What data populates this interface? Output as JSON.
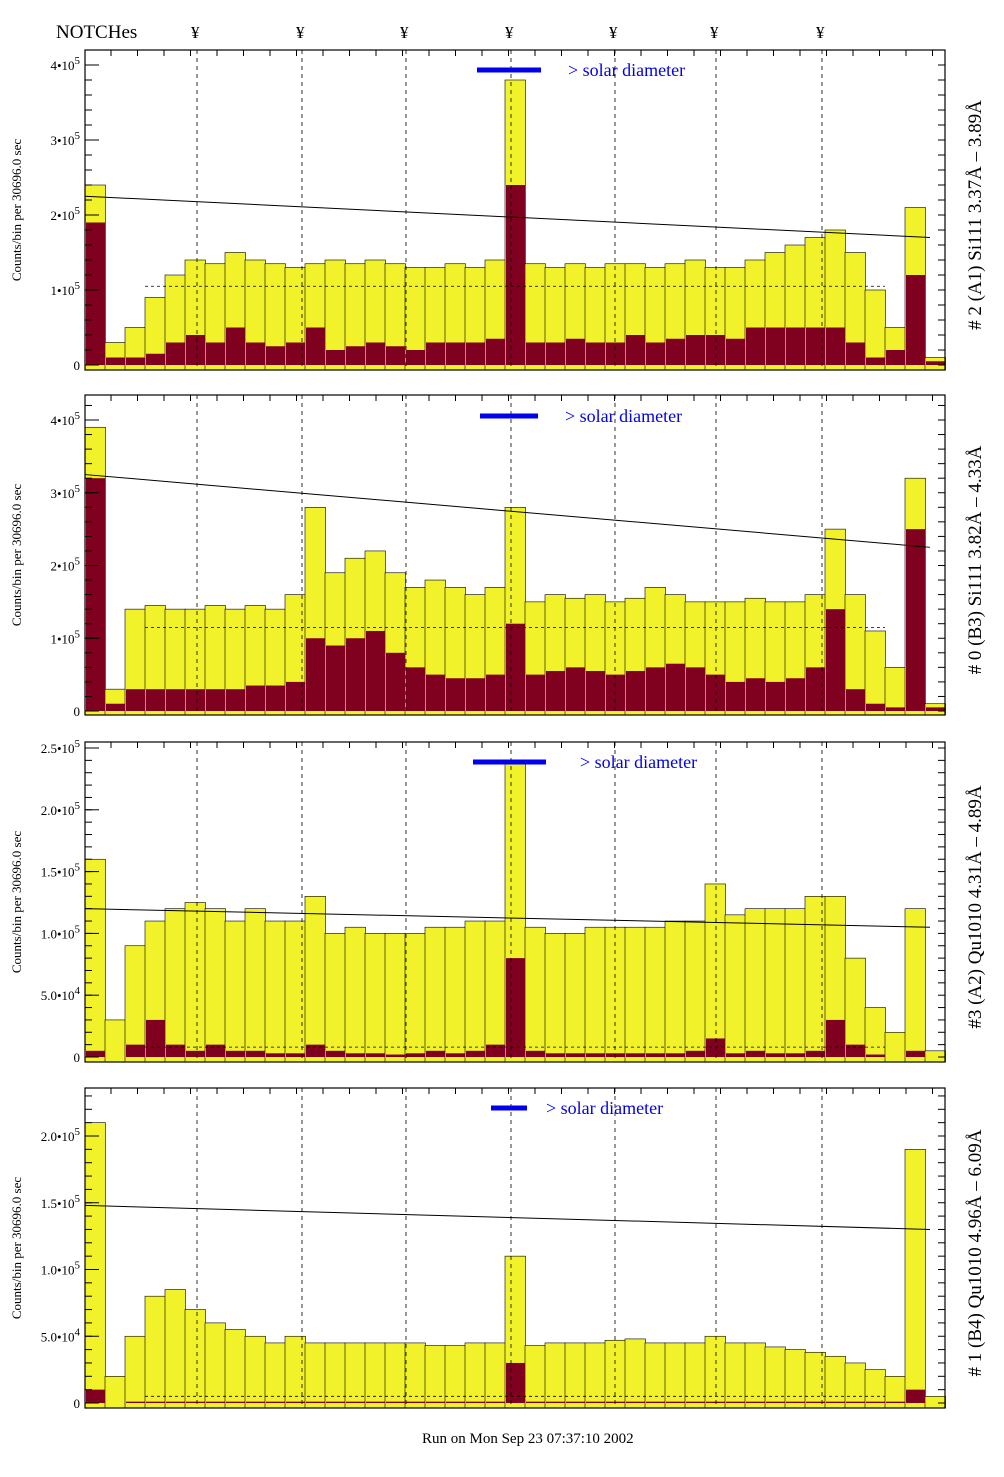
{
  "header": {
    "notches_label": "NOTCHes",
    "notch_symbol": "¥",
    "notch_count": 7
  },
  "footer": {
    "run_text": "Run on Mon Sep 23 07:37:10 2002"
  },
  "colors": {
    "fill": "#f2f22a",
    "dark": "#800020",
    "accent": "#0000ee"
  },
  "chart_data": [
    {
      "type": "bar",
      "title": "# 2 (A1) Si111  3.37Å – 3.89Å",
      "ylabel": "Counts/bin per  30696.0 sec",
      "legend": "> solar diameter",
      "unit": 100000,
      "ylim": [
        0,
        4.2
      ],
      "yticks": [
        {
          "v": 0,
          "m": "0",
          "e": ""
        },
        {
          "v": 1,
          "m": "1•10",
          "e": "5"
        },
        {
          "v": 2,
          "m": "2•10",
          "e": "5"
        },
        {
          "v": 3,
          "m": "3•10",
          "e": "5"
        },
        {
          "v": 4,
          "m": "4•10",
          "e": "5"
        }
      ],
      "total": [
        2.4,
        0.3,
        0.5,
        0.9,
        1.2,
        1.4,
        1.35,
        1.5,
        1.4,
        1.35,
        1.3,
        1.35,
        1.4,
        1.35,
        1.4,
        1.35,
        1.3,
        1.3,
        1.35,
        1.3,
        1.4,
        3.8,
        1.35,
        1.3,
        1.35,
        1.3,
        1.35,
        1.35,
        1.3,
        1.35,
        1.4,
        1.3,
        1.3,
        1.4,
        1.5,
        1.6,
        1.7,
        1.8,
        1.5,
        1.0,
        0.5,
        2.1,
        0.1
      ],
      "core": [
        1.9,
        0.1,
        0.1,
        0.15,
        0.3,
        0.4,
        0.3,
        0.5,
        0.3,
        0.25,
        0.3,
        0.5,
        0.2,
        0.25,
        0.3,
        0.25,
        0.2,
        0.3,
        0.3,
        0.3,
        0.35,
        2.4,
        0.3,
        0.3,
        0.35,
        0.3,
        0.3,
        0.4,
        0.3,
        0.35,
        0.4,
        0.4,
        0.35,
        0.5,
        0.5,
        0.5,
        0.5,
        0.5,
        0.3,
        0.1,
        0.2,
        1.2,
        0.05
      ],
      "fit_line": [
        2.25,
        1.7
      ],
      "dashed_level": 1.05
    },
    {
      "type": "bar",
      "title": "# 0 (B3) Si111  3.82Å – 4.33Å",
      "ylabel": "Counts/bin per  30696.0 sec",
      "legend": "> solar diameter",
      "unit": 100000,
      "ylim": [
        0,
        4.3
      ],
      "yticks": [
        {
          "v": 0,
          "m": "0",
          "e": ""
        },
        {
          "v": 1,
          "m": "1•10",
          "e": "5"
        },
        {
          "v": 2,
          "m": "2•10",
          "e": "5"
        },
        {
          "v": 3,
          "m": "3•10",
          "e": "5"
        },
        {
          "v": 4,
          "m": "4•10",
          "e": "5"
        }
      ],
      "total": [
        3.9,
        0.3,
        1.4,
        1.45,
        1.4,
        1.4,
        1.45,
        1.4,
        1.45,
        1.4,
        1.6,
        2.8,
        1.9,
        2.1,
        2.2,
        1.9,
        1.7,
        1.8,
        1.7,
        1.6,
        1.7,
        2.8,
        1.5,
        1.6,
        1.55,
        1.6,
        1.5,
        1.55,
        1.7,
        1.6,
        1.5,
        1.5,
        1.5,
        1.55,
        1.5,
        1.5,
        1.6,
        2.5,
        1.6,
        1.1,
        0.6,
        3.2,
        0.1
      ],
      "core": [
        3.2,
        0.1,
        0.3,
        0.3,
        0.3,
        0.3,
        0.3,
        0.3,
        0.35,
        0.35,
        0.4,
        1.0,
        0.9,
        1.0,
        1.1,
        0.8,
        0.6,
        0.5,
        0.45,
        0.45,
        0.5,
        1.2,
        0.5,
        0.55,
        0.6,
        0.55,
        0.5,
        0.55,
        0.6,
        0.65,
        0.6,
        0.5,
        0.4,
        0.45,
        0.4,
        0.45,
        0.6,
        1.4,
        0.3,
        0.1,
        0.05,
        2.5,
        0.05
      ],
      "fit_line": [
        3.25,
        2.25
      ],
      "dashed_level": 1.15
    },
    {
      "type": "bar",
      "title": "#3 (A2) Qu1010  4.31Å – 4.89Å",
      "ylabel": "Counts/bin per  30696.0 sec",
      "legend": "> solar diameter",
      "unit": 10000,
      "ylim": [
        0,
        25.5
      ],
      "yticks": [
        {
          "v": 0,
          "m": "0",
          "e": ""
        },
        {
          "v": 5,
          "m": "5.0•10",
          "e": "4"
        },
        {
          "v": 10,
          "m": "1.0•10",
          "e": "5"
        },
        {
          "v": 15,
          "m": "1.5•10",
          "e": "5"
        },
        {
          "v": 20,
          "m": "2.0•10",
          "e": "5"
        },
        {
          "v": 25,
          "m": "2.5•10",
          "e": "5"
        }
      ],
      "total": [
        16,
        3,
        9,
        11,
        12,
        12.5,
        12,
        11,
        12,
        11,
        11,
        13,
        10,
        10.5,
        10,
        10,
        10,
        10.5,
        10.5,
        11,
        11,
        24,
        10.5,
        10,
        10,
        10.5,
        10.5,
        10.5,
        10.5,
        11,
        11,
        14,
        11.5,
        12,
        12,
        12,
        13,
        13,
        8,
        4,
        2,
        12,
        0.5
      ],
      "core": [
        0.5,
        0,
        1,
        3,
        1,
        0.5,
        1,
        0.5,
        0.5,
        0.3,
        0.3,
        1,
        0.5,
        0.3,
        0.3,
        0.2,
        0.3,
        0.5,
        0.3,
        0.5,
        1,
        8,
        0.5,
        0.3,
        0.3,
        0.3,
        0.3,
        0.3,
        0.3,
        0.3,
        0.5,
        1.5,
        0.3,
        0.5,
        0.3,
        0.3,
        0.5,
        3,
        1,
        0.2,
        0,
        0.5,
        0
      ],
      "fit_line": [
        12,
        10.5
      ],
      "dashed_level": 0.8
    },
    {
      "type": "bar",
      "title": "# 1 (B4) Qu1010 4.96Å – 6.09Å",
      "ylabel": "Counts/bin per  30696.0 sec",
      "legend": "> solar diameter",
      "unit": 10000,
      "ylim": [
        0,
        23.5
      ],
      "yticks": [
        {
          "v": 0,
          "m": "0",
          "e": ""
        },
        {
          "v": 5,
          "m": "5.0•10",
          "e": "4"
        },
        {
          "v": 10,
          "m": "1.0•10",
          "e": "5"
        },
        {
          "v": 15,
          "m": "1.5•10",
          "e": "5"
        },
        {
          "v": 20,
          "m": "2.0•10",
          "e": "5"
        }
      ],
      "total": [
        21,
        2,
        5,
        8,
        8.5,
        7,
        6,
        5.5,
        5,
        4.5,
        5,
        4.5,
        4.5,
        4.5,
        4.5,
        4.5,
        4.5,
        4.3,
        4.3,
        4.5,
        4.5,
        11,
        4.3,
        4.5,
        4.5,
        4.5,
        4.7,
        4.8,
        4.5,
        4.5,
        4.5,
        5,
        4.5,
        4.5,
        4.2,
        4,
        3.8,
        3.5,
        3,
        2.5,
        2,
        19,
        0.5
      ],
      "core": [
        1,
        0,
        0.1,
        0.1,
        0.1,
        0.1,
        0.1,
        0.1,
        0.1,
        0.1,
        0.1,
        0.1,
        0.1,
        0.1,
        0.1,
        0.1,
        0.1,
        0.1,
        0.1,
        0.1,
        0.1,
        3,
        0.1,
        0.1,
        0.1,
        0.1,
        0.1,
        0.1,
        0.1,
        0.1,
        0.1,
        0.1,
        0.1,
        0.1,
        0.1,
        0.1,
        0.1,
        0.1,
        0.1,
        0.1,
        0.1,
        1,
        0
      ],
      "fit_line": [
        14.8,
        13
      ],
      "dashed_level": 0.5
    }
  ]
}
